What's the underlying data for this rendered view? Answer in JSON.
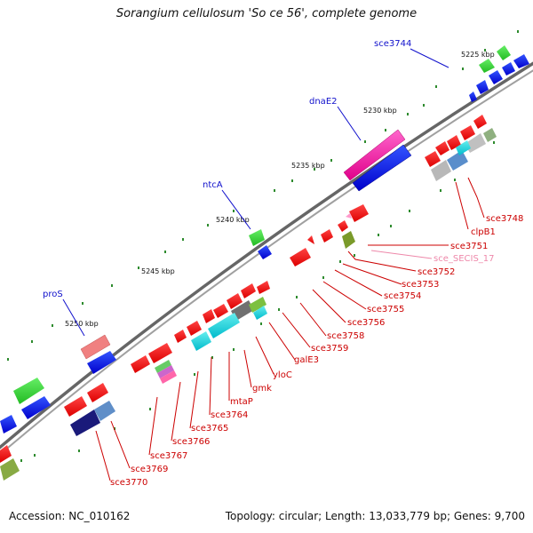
{
  "title": "Sorangium cellulosum 'So ce 56', complete genome",
  "footer": {
    "accession": "Accession: NC_010162",
    "summary": "Topology: circular; Length: 13,033,779 bp; Genes: 9,700"
  },
  "kbp_ticks": [
    "5225 kbp",
    "5230 kbp",
    "5235 kbp",
    "5240 kbp",
    "5245 kbp",
    "5250 kbp"
  ],
  "gene_labels": {
    "upper": [
      "sce3744",
      "dnaE2",
      "ntcA",
      "proS"
    ],
    "right": [
      "sce3748",
      "clpB1",
      "sce3751",
      "sce_SECIS_17",
      "sce3752",
      "sce3753",
      "sce3754",
      "sce3755",
      "sce3756",
      "sce3758",
      "sce3759",
      "galE3",
      "yloC",
      "gmk",
      "mtaP",
      "sce3764",
      "sce3765",
      "sce3766",
      "sce3767",
      "sce3769",
      "sce3770"
    ]
  },
  "colors": {
    "backbone": "#808080",
    "forward_gene": "#0000ee",
    "reverse_gene": "#ee0000",
    "rna": "#33cc33",
    "label_blue": "#1111cc",
    "label_red": "#cc0000",
    "label_pink": "#ee88aa"
  }
}
